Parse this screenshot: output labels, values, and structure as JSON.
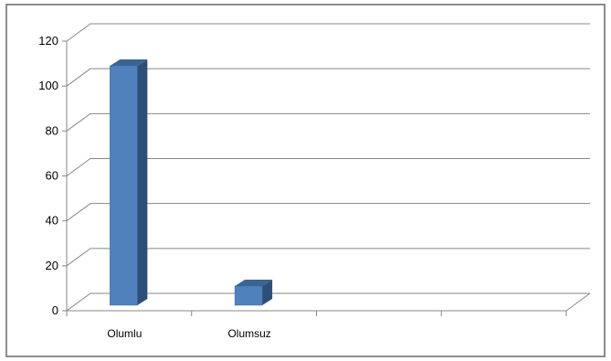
{
  "chart_data": {
    "type": "bar",
    "categories": [
      "Olumlu",
      "Olumsuz",
      "",
      ""
    ],
    "values": [
      109,
      11,
      null,
      null
    ],
    "ylim": [
      0,
      120
    ],
    "yticks": [
      0,
      20,
      40,
      60,
      80,
      100,
      120
    ],
    "title": "",
    "xlabel": "",
    "ylabel": "",
    "grid": true,
    "legend": "none",
    "style": "3d-column",
    "colors": {
      "bar_front": "#4f81bd",
      "bar_side": "#2d4f77",
      "bar_top": "#3a6494",
      "grid": "#878787",
      "frame": "#8c8c8c"
    }
  }
}
